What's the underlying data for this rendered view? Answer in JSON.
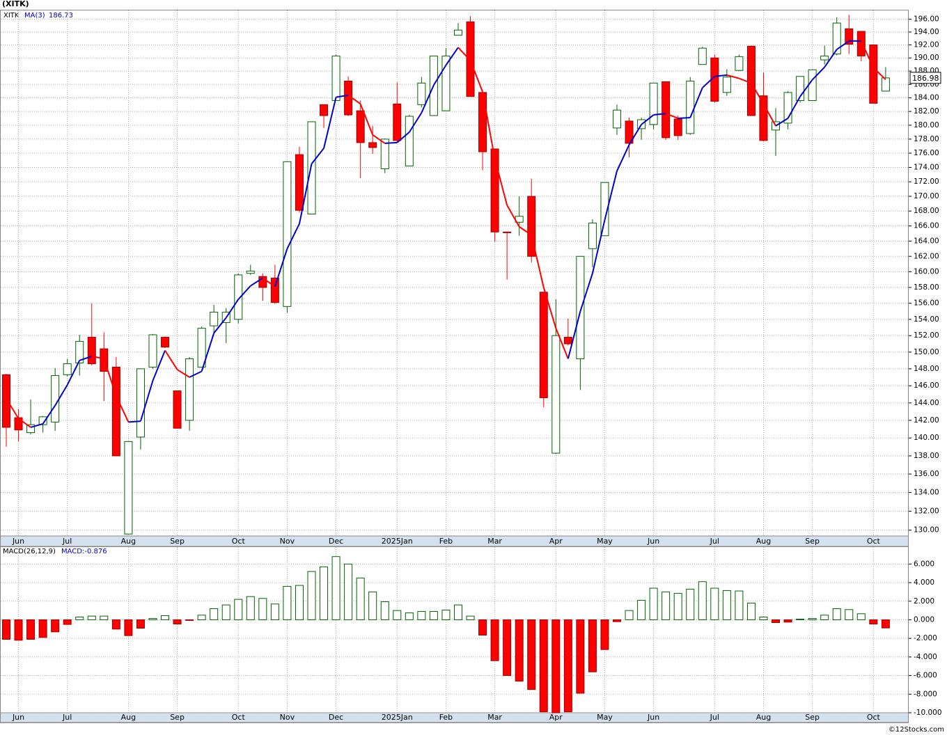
{
  "chart_data": [
    {
      "type": "candlestick",
      "title": "(XITK)",
      "symbol": "XITK",
      "categories": [
        null,
        "Jun",
        null,
        null,
        null,
        "Jul",
        null,
        null,
        null,
        null,
        "Aug",
        null,
        null,
        null,
        "Sep",
        null,
        null,
        null,
        null,
        "Oct",
        null,
        null,
        null,
        "Nov",
        null,
        null,
        null,
        "Dec",
        null,
        null,
        null,
        null,
        "2025Jan",
        null,
        null,
        null,
        "Feb",
        null,
        null,
        null,
        "Mar",
        null,
        null,
        null,
        null,
        "Apr",
        null,
        null,
        null,
        "May",
        null,
        null,
        null,
        "Jun",
        null,
        null,
        null,
        null,
        "Jul",
        null,
        null,
        null,
        "Aug",
        null,
        null,
        null,
        "Sep",
        null,
        null,
        null,
        null,
        "Oct",
        null
      ],
      "open": [
        147.3,
        142.3,
        140.6,
        141.5,
        141.8,
        147.3,
        148.7,
        151.8,
        150.4,
        148.2,
        129.6,
        140.1,
        148.2,
        151.8,
        145.4,
        142.0,
        148.2,
        153.2,
        153.6,
        154.0,
        159.8,
        159.4,
        159.2,
        155.6,
        175.8,
        167.6,
        183.0,
        183.6,
        186.5,
        182.1,
        177.5,
        173.8,
        183.1,
        174.2,
        183.0,
        181.4,
        182.1,
        193.5,
        195.6,
        184.8,
        176.6,
        165.2,
        166.5,
        170.0,
        157.4,
        138.3,
        151.8,
        149.2,
        163.0,
        164.7,
        179.6,
        180.6,
        179.5,
        180.1,
        186.4,
        180.9,
        178.8,
        189.0,
        190.0,
        184.8,
        188.1,
        191.8,
        184.3,
        179.3,
        180.3,
        183.6,
        183.6,
        189.7,
        190.6,
        194.5,
        194.1,
        192.0,
        185.0
      ],
      "high": [
        147.4,
        143.3,
        144.4,
        142.5,
        148.1,
        149.2,
        152.1,
        156.0,
        152.4,
        149.4,
        139.6,
        148.0,
        152.2,
        151.9,
        145.4,
        149.4,
        153.1,
        155.8,
        155.4,
        159.8,
        160.9,
        159.8,
        160.9,
        174.8,
        176.9,
        180.5,
        183.0,
        190.5,
        187.2,
        183.6,
        179.9,
        178.1,
        186.3,
        181.5,
        187.1,
        190.3,
        191.5,
        195.4,
        196.5,
        184.8,
        176.6,
        165.2,
        170.0,
        172.4,
        157.4,
        156.5,
        154.1,
        162.0,
        166.9,
        171.9,
        183.0,
        181.1,
        181.1,
        186.2,
        186.4,
        181.4,
        187.1,
        191.7,
        190.5,
        188.3,
        190.5,
        191.9,
        187.8,
        182.5,
        185.0,
        187.2,
        188.2,
        191.9,
        196.3,
        196.7,
        194.1,
        192.0,
        188.6
      ],
      "low": [
        139.0,
        139.6,
        140.4,
        140.6,
        140.8,
        147.1,
        147.2,
        148.4,
        144.2,
        138.0,
        129.6,
        138.7,
        148.0,
        150.5,
        141.1,
        140.8,
        148.2,
        152.2,
        151.1,
        153.5,
        159.6,
        156.3,
        155.9,
        154.8,
        167.8,
        167.6,
        179.6,
        183.6,
        181.3,
        172.5,
        175.9,
        173.2,
        177.6,
        174.2,
        182.6,
        181.4,
        182.1,
        193.5,
        184.2,
        173.6,
        163.9,
        159.0,
        164.7,
        161.2,
        143.5,
        138.2,
        150.8,
        145.5,
        160.6,
        164.7,
        178.6,
        175.4,
        177.9,
        179.4,
        177.9,
        177.9,
        178.6,
        189.0,
        183.3,
        184.3,
        188.0,
        181.4,
        177.7,
        175.6,
        179.4,
        183.3,
        183.6,
        189.0,
        190.4,
        190.6,
        189.5,
        183.2,
        185.0
      ],
      "close": [
        141.2,
        140.9,
        141.5,
        142.4,
        147.2,
        148.6,
        151.3,
        148.6,
        147.7,
        138.0,
        139.6,
        148.0,
        152.1,
        150.6,
        141.1,
        149.2,
        152.9,
        154.9,
        154.9,
        159.6,
        160.1,
        158.0,
        156.1,
        174.8,
        168.1,
        180.5,
        181.4,
        190.3,
        181.5,
        177.5,
        176.8,
        178.0,
        177.8,
        181.3,
        186.2,
        190.3,
        190.3,
        194.3,
        184.2,
        176.2,
        165.2,
        165.1,
        167.3,
        162.0,
        144.6,
        152.0,
        151.0,
        162.0,
        166.4,
        171.9,
        182.2,
        177.4,
        180.8,
        186.2,
        178.2,
        178.5,
        186.5,
        191.5,
        183.5,
        187.1,
        190.2,
        181.4,
        177.8,
        180.5,
        184.8,
        187.2,
        188.2,
        190.3,
        195.4,
        192.1,
        190.3,
        183.2,
        186.98
      ],
      "up_color": "#006400",
      "down_color": "#ff0000",
      "ma": {
        "name": "MA(3)",
        "up_color": "#0000cc",
        "down_color": "#ff0000",
        "values": [
          144.5,
          142.2,
          141.2,
          141.6,
          143.7,
          146.1,
          149.0,
          149.5,
          149.2,
          144.8,
          141.8,
          141.9,
          146.6,
          150.2,
          147.9,
          147.0,
          147.7,
          152.3,
          154.2,
          156.5,
          158.2,
          159.2,
          158.1,
          163.0,
          166.3,
          174.5,
          176.7,
          184.1,
          184.4,
          183.1,
          178.6,
          177.4,
          177.5,
          179.0,
          181.8,
          185.9,
          188.9,
          191.6,
          189.6,
          184.9,
          175.2,
          168.8,
          165.9,
          164.8,
          158.0,
          152.9,
          149.2,
          155.0,
          159.8,
          166.8,
          173.5,
          177.2,
          180.1,
          181.5,
          181.7,
          181.0,
          181.1,
          185.5,
          187.2,
          187.4,
          186.9,
          186.2,
          183.1,
          179.9,
          181.0,
          184.2,
          186.7,
          188.6,
          191.3,
          192.6,
          192.6,
          188.5,
          186.73
        ]
      },
      "log_scale": true,
      "grid": true,
      "ylim": [
        129.4,
        197.5
      ],
      "yticks": [
        {
          "value": 130,
          "label": "130.00"
        },
        {
          "value": 132,
          "label": "132.00"
        },
        {
          "value": 134,
          "label": "134.00"
        },
        {
          "value": 136,
          "label": "136.00"
        },
        {
          "value": 138,
          "label": "138.00"
        },
        {
          "value": 140,
          "label": "140.00"
        },
        {
          "value": 142,
          "label": "142.00"
        },
        {
          "value": 144,
          "label": "144.00"
        },
        {
          "value": 146,
          "label": "146.00"
        },
        {
          "value": 148,
          "label": "148.00"
        },
        {
          "value": 150,
          "label": "150.00"
        },
        {
          "value": 152,
          "label": "152.00"
        },
        {
          "value": 154,
          "label": "154.00"
        },
        {
          "value": 156,
          "label": "156.00"
        },
        {
          "value": 158,
          "label": "158.00"
        },
        {
          "value": 160,
          "label": "160.00"
        },
        {
          "value": 162,
          "label": "162.00"
        },
        {
          "value": 164,
          "label": "164.00"
        },
        {
          "value": 166,
          "label": "166.00"
        },
        {
          "value": 168,
          "label": "168.00"
        },
        {
          "value": 170,
          "label": "170.00"
        },
        {
          "value": 172,
          "label": "172.00"
        },
        {
          "value": 174,
          "label": "174.00"
        },
        {
          "value": 176,
          "label": "176.00"
        },
        {
          "value": 178,
          "label": "178.00"
        },
        {
          "value": 180,
          "label": "180.00"
        },
        {
          "value": 182,
          "label": "182.00"
        },
        {
          "value": 184,
          "label": "184.00"
        },
        {
          "value": 186,
          "label": "186.00"
        },
        {
          "value": 188,
          "label": "188.00"
        },
        {
          "value": 190,
          "label": "190.00"
        },
        {
          "value": 192,
          "label": "192.00"
        },
        {
          "value": 194,
          "label": "194.00"
        },
        {
          "value": 196,
          "label": "196.00"
        }
      ]
    },
    {
      "type": "bar",
      "title": "MACD(26,12,9)",
      "footer": "©12Stocks.com",
      "series": [
        {
          "name": "MACD:",
          "color": "#0000cc",
          "up_color": "#006400",
          "down_color": "#ff0000",
          "values": [
            -2.1,
            -2.2,
            -2.1,
            -1.9,
            -1.3,
            -0.5,
            0.3,
            0.4,
            0.4,
            -1.0,
            -1.7,
            -0.9,
            0.15,
            0.45,
            -0.45,
            -0.07,
            0.5,
            1.2,
            1.6,
            2.2,
            2.5,
            2.3,
            1.7,
            3.6,
            3.7,
            5.2,
            5.7,
            6.8,
            6.0,
            4.5,
            3.0,
            1.95,
            1.0,
            0.75,
            0.9,
            0.9,
            1.05,
            1.6,
            0.4,
            -1.65,
            -4.4,
            -6.0,
            -6.6,
            -7.5,
            -9.9,
            -10.0,
            -9.9,
            -7.9,
            -5.6,
            -3.2,
            -0.2,
            1.0,
            2.1,
            3.4,
            3.0,
            2.85,
            3.3,
            4.1,
            3.4,
            3.15,
            3.1,
            1.8,
            0.3,
            -0.3,
            -0.25,
            0.07,
            0.15,
            0.5,
            1.2,
            1.1,
            0.65,
            -0.45,
            -0.876
          ]
        }
      ],
      "grid": true,
      "ylim": [
        -10.0,
        7.9
      ],
      "yticks": [
        {
          "value": 6,
          "label": "6.000"
        },
        {
          "value": 4,
          "label": "4.000"
        },
        {
          "value": 2,
          "label": "2.000"
        },
        {
          "value": 0,
          "label": "0.000"
        },
        {
          "value": -2,
          "label": "-2.000"
        },
        {
          "value": -4,
          "label": "-4.000"
        },
        {
          "value": -6,
          "label": "-6.000"
        },
        {
          "value": -8,
          "label": "-8.000"
        },
        {
          "value": -10,
          "label": "-10.000"
        }
      ]
    }
  ]
}
